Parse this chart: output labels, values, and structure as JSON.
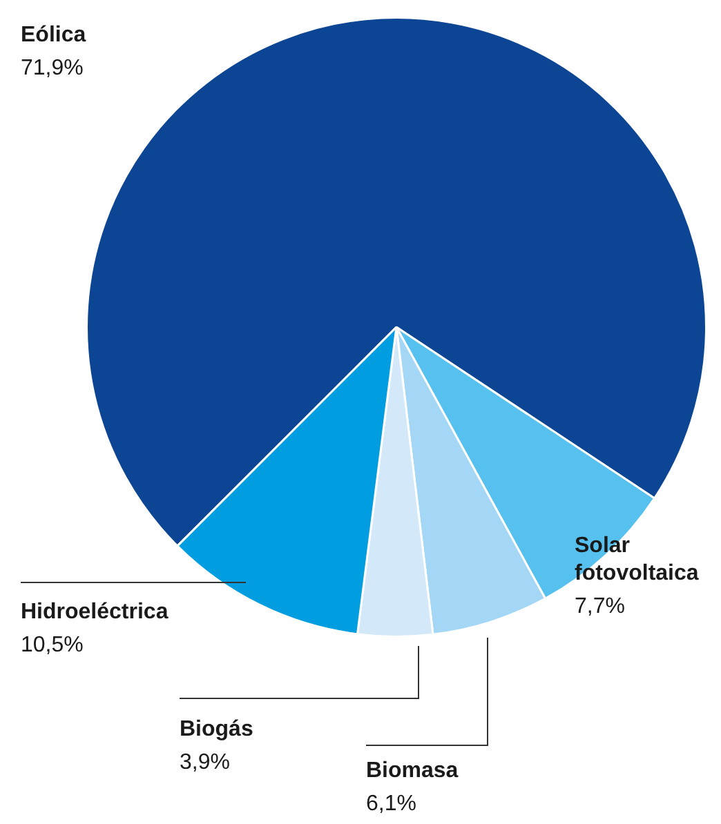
{
  "chart_data": {
    "type": "pie",
    "categories": [
      "Eólica",
      "Solar\nfotovoltaica",
      "Biomasa",
      "Biogás",
      "Hidroeléctrica"
    ],
    "values": [
      71.9,
      7.7,
      6.1,
      3.9,
      10.5
    ],
    "value_labels": [
      "71,9%",
      "7,7%",
      "6,1%",
      "3,9%",
      "10,5%"
    ],
    "colors": [
      "#0d4595",
      "#56c1ee",
      "#a3d7f5",
      "#d3e9f9",
      "#009ee0"
    ],
    "legend": false
  }
}
